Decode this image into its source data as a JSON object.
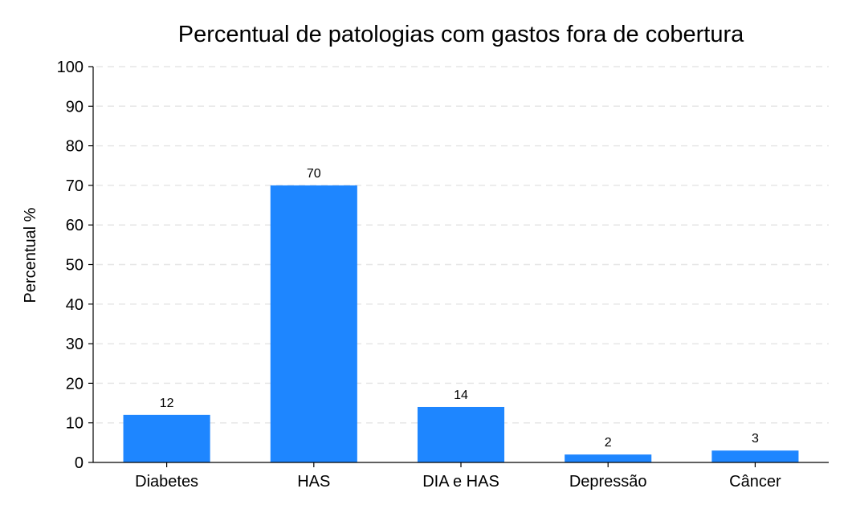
{
  "chart_data": {
    "type": "bar",
    "title": "Percentual de patologias com gastos fora de cobertura",
    "xlabel": "",
    "ylabel": "Percentual %",
    "categories": [
      "Diabetes",
      "HAS",
      "DIA e HAS",
      "Depressão",
      "Câncer"
    ],
    "values": [
      12,
      70,
      14,
      2,
      3
    ],
    "data_labels": [
      "12",
      "70",
      "14",
      "2",
      "3"
    ],
    "ylim": [
      0,
      100
    ],
    "yticks": [
      0,
      10,
      20,
      30,
      40,
      50,
      60,
      70,
      80,
      90,
      100
    ],
    "grid": true,
    "legend": "none",
    "bar_color": "#1e86ff"
  }
}
